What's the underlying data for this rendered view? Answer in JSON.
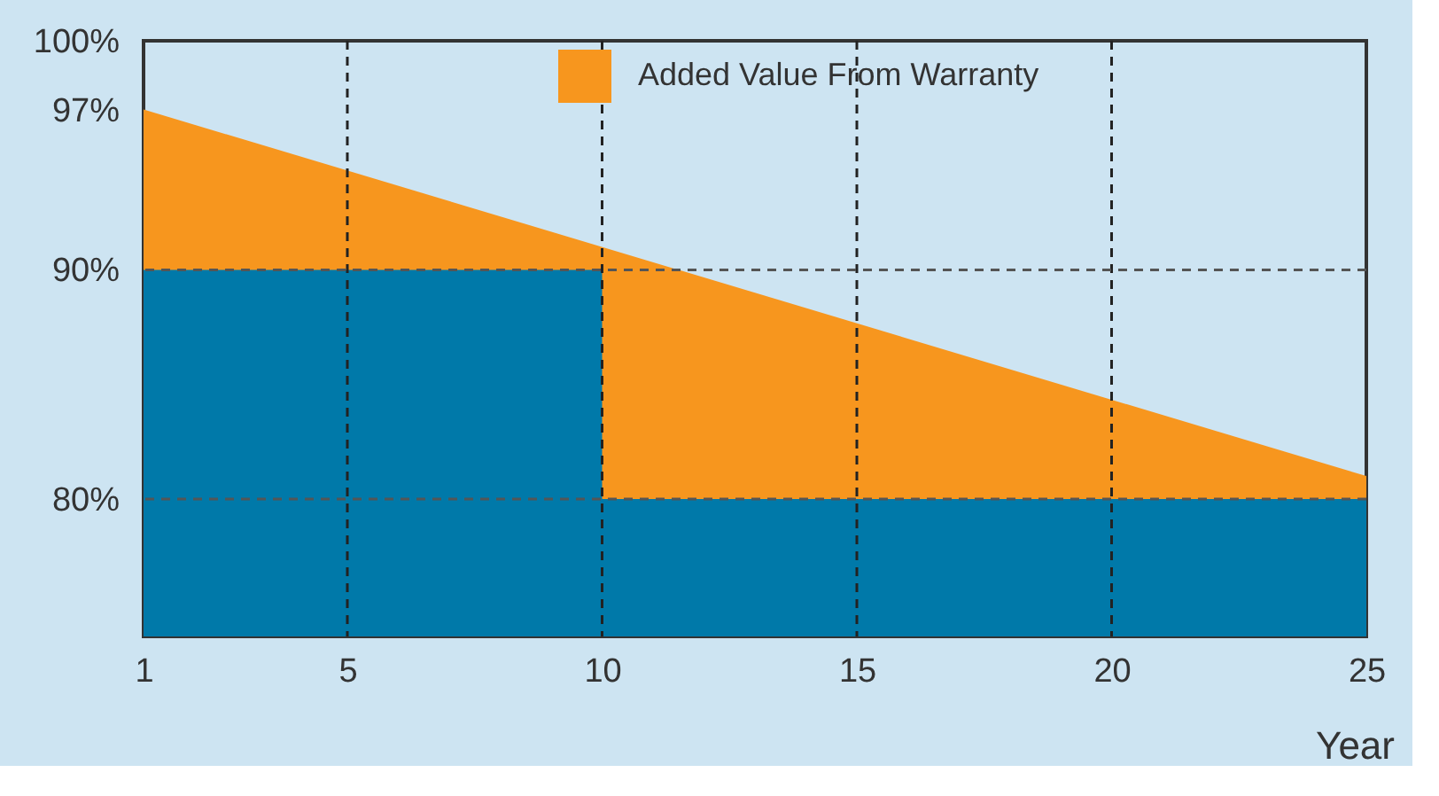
{
  "chart_data": {
    "type": "area",
    "xlabel": "Year",
    "series": [
      {
        "name": "Added Value From Warranty",
        "color": "#f7961e",
        "x": [
          1,
          25
        ],
        "values": [
          97,
          81
        ]
      },
      {
        "color": "#0079a9",
        "x": [
          1,
          10,
          10,
          25
        ],
        "values": [
          90,
          90,
          80,
          80
        ]
      }
    ],
    "xlim": [
      1,
      25
    ],
    "xticks": [
      1,
      5,
      10,
      15,
      20,
      25
    ],
    "ylim": [
      74,
      100
    ],
    "yticks": [
      {
        "value": 80,
        "label": "80%"
      },
      {
        "value": 90,
        "label": "90%"
      },
      {
        "value": 97,
        "label": "97%"
      },
      {
        "value": 100,
        "label": "100%"
      }
    ],
    "ref_lines": [
      {
        "axis": "x",
        "value": 5,
        "line_style": "dashed",
        "color": "#222222"
      },
      {
        "axis": "x",
        "value": 10,
        "line_style": "dashed",
        "color": "#222222"
      },
      {
        "axis": "x",
        "value": 15,
        "line_style": "dashed",
        "color": "#222222"
      },
      {
        "axis": "x",
        "value": 20,
        "line_style": "dashed",
        "color": "#222222"
      },
      {
        "axis": "y",
        "value": 90,
        "line_style": "dashed",
        "color": "#555555"
      },
      {
        "axis": "y",
        "value": 80,
        "line_style": "dashed",
        "color": "#555555"
      }
    ],
    "legend": "top right",
    "grid": false
  }
}
